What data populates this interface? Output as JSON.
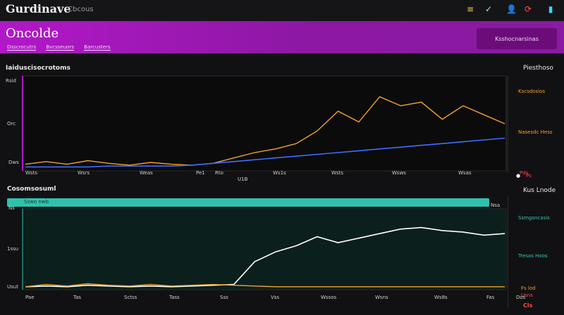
{
  "app": {
    "title": "Gurdinave",
    "subtitle": "Cbcous"
  },
  "hero": {
    "title": "Oncolde",
    "crumbs": [
      "Dsscrocutrs",
      "Bvcsseuors",
      "Barcusters"
    ],
    "button": "Ksshocnarsinas"
  },
  "icons": [
    "menu-icon",
    "check-icon",
    "user-icon",
    "refresh-icon",
    "bookmark-icon"
  ],
  "top_panel": {
    "title": "Iaiduscisocrotoms",
    "right_title": "Piesthoso",
    "axis_labels": [
      "Rsid",
      "Orc",
      "Dws"
    ],
    "ticks": [
      "Wsts",
      "Wsrs",
      "Weas",
      "Pe1",
      "Rto",
      "Ws1s",
      "Wsts",
      "Wsws",
      "Wsas"
    ],
    "below_tick": "U1B",
    "legend_gold": "Kscsdosios",
    "legend_gold2": "Nasesdc Hess",
    "legend_red": "Pds",
    "badge_pill": "Ps",
    "chart_data": {
      "type": "line",
      "series": [
        {
          "values": [
            0.05,
            0.08,
            0.05,
            0.09,
            0.06,
            0.04,
            0.07,
            0.05,
            0.04,
            0.06,
            0.12,
            0.18,
            0.22,
            0.28,
            0.42,
            0.64,
            0.52,
            0.8,
            0.7,
            0.74,
            0.55,
            0.7,
            0.6,
            0.5
          ]
        },
        {
          "values": [
            0.02,
            0.02,
            0.02,
            0.02,
            0.03,
            0.03,
            0.03,
            0.03,
            0.04,
            0.06,
            0.08,
            0.1,
            0.12,
            0.14,
            0.16,
            0.18,
            0.2,
            0.22,
            0.24,
            0.26,
            0.28,
            0.3,
            0.32,
            0.34
          ]
        }
      ]
    }
  },
  "bottom_panel": {
    "title": "Cosomsosuml",
    "bar_label": "Sswo nwb",
    "bar_value": "Nsa",
    "axis_labels": [
      "Ns",
      "1ssu",
      "Usut"
    ],
    "ticks": [
      "Pae",
      "Tas",
      "Sctss",
      "Tass",
      "Sss",
      "Vss",
      "Wssos",
      "Wsns",
      "Ws8s",
      "Fas",
      "Dos"
    ],
    "legend_teal1": "Ssmgsncasis",
    "legend_teal2": "Tresas Hoos",
    "legend_yellow": "Fs lod",
    "legend_red": "Usns",
    "right_title": "Kus Lnode",
    "right_badge": "Cls",
    "chart_data": {
      "type": "line",
      "series": [
        {
          "values": [
            0.02,
            0.03,
            0.02,
            0.04,
            0.03,
            0.02,
            0.03,
            0.02,
            0.03,
            0.04,
            0.05,
            0.35,
            0.48,
            0.56,
            0.68,
            0.6,
            0.66,
            0.72,
            0.78,
            0.8,
            0.76,
            0.74,
            0.7,
            0.72
          ]
        },
        {
          "values": [
            0.02,
            0.05,
            0.03,
            0.06,
            0.04,
            0.03,
            0.05,
            0.03,
            0.04,
            0.05,
            0.04,
            0.03,
            0.02,
            0.02,
            0.02,
            0.02,
            0.02,
            0.02,
            0.02,
            0.02,
            0.02,
            0.02,
            0.02,
            0.02
          ]
        }
      ]
    }
  },
  "colors": {
    "accent": "#b218c8",
    "gold": "#f2a22b",
    "blue": "#3b6fff",
    "teal": "#30c7b5"
  }
}
